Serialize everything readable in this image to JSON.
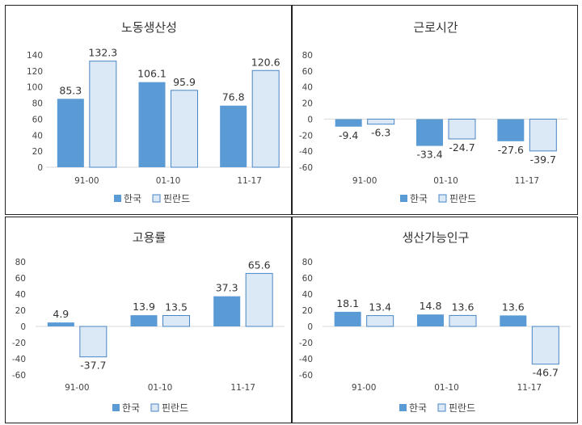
{
  "colors": {
    "korea": "#5b9bd5",
    "finland": "#dbe8f6",
    "finland_border": "#4a86c5"
  },
  "legend": {
    "korea": "한국",
    "finland": "핀란드"
  },
  "chart_data": [
    {
      "type": "bar",
      "title": "노동생산성",
      "categories": [
        "91-00",
        "01-10",
        "11-17"
      ],
      "series": [
        {
          "name": "한국",
          "values": [
            85.3,
            106.1,
            76.8
          ]
        },
        {
          "name": "핀란드",
          "values": [
            132.3,
            95.9,
            120.6
          ]
        }
      ],
      "yticks": [
        0,
        20,
        40,
        60,
        80,
        100,
        120,
        140
      ],
      "ylim": [
        0,
        140
      ],
      "grid": false,
      "legend_position": "bottom"
    },
    {
      "type": "bar",
      "title": "근로시간",
      "categories": [
        "91-00",
        "01-10",
        "11-17"
      ],
      "series": [
        {
          "name": "한국",
          "values": [
            -9.4,
            -33.4,
            -27.6
          ]
        },
        {
          "name": "핀란드",
          "values": [
            -6.3,
            -24.7,
            -39.7
          ]
        }
      ],
      "yticks": [
        -60,
        -40,
        -20,
        0,
        20,
        40,
        60,
        80
      ],
      "ylim": [
        -60,
        80
      ],
      "grid": false,
      "legend_position": "bottom"
    },
    {
      "type": "bar",
      "title": "고용률",
      "categories": [
        "91-00",
        "01-10",
        "11-17"
      ],
      "series": [
        {
          "name": "한국",
          "values": [
            4.9,
            13.9,
            37.3
          ]
        },
        {
          "name": "핀란드",
          "values": [
            -37.7,
            13.5,
            65.6
          ]
        }
      ],
      "yticks": [
        -60,
        -40,
        -20,
        0,
        20,
        40,
        60,
        80
      ],
      "ylim": [
        -60,
        80
      ],
      "grid": false,
      "legend_position": "bottom"
    },
    {
      "type": "bar",
      "title": "생산가능인구",
      "categories": [
        "91-00",
        "01-10",
        "11-17"
      ],
      "series": [
        {
          "name": "한국",
          "values": [
            18.1,
            14.8,
            13.6
          ]
        },
        {
          "name": "핀란드",
          "values": [
            13.4,
            13.6,
            -46.7
          ]
        }
      ],
      "yticks": [
        -60,
        -40,
        -20,
        0,
        20,
        40,
        60,
        80
      ],
      "ylim": [
        -60,
        80
      ],
      "grid": false,
      "legend_position": "bottom"
    }
  ]
}
